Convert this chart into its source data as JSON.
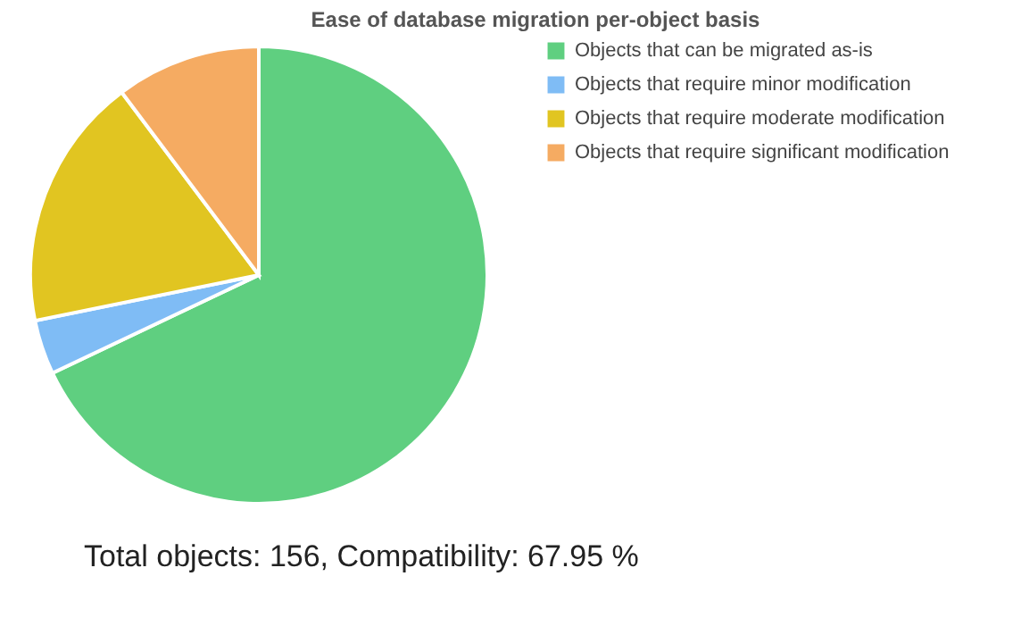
{
  "chart_data": {
    "type": "pie",
    "title": "Ease of database migration per-object basis",
    "categories": [
      "Objects that can be migrated as-is",
      "Objects that require minor modification",
      "Objects that require moderate modification",
      "Objects that require significant modification"
    ],
    "values": [
      67.95,
      3.85,
      17.95,
      10.25
    ],
    "colors": [
      "#5fcf80",
      "#7fbcf5",
      "#e1c521",
      "#f5ab62"
    ],
    "legend": "right",
    "annotations": [
      "Total objects: 156, Compatibility: 67.95 %"
    ]
  }
}
